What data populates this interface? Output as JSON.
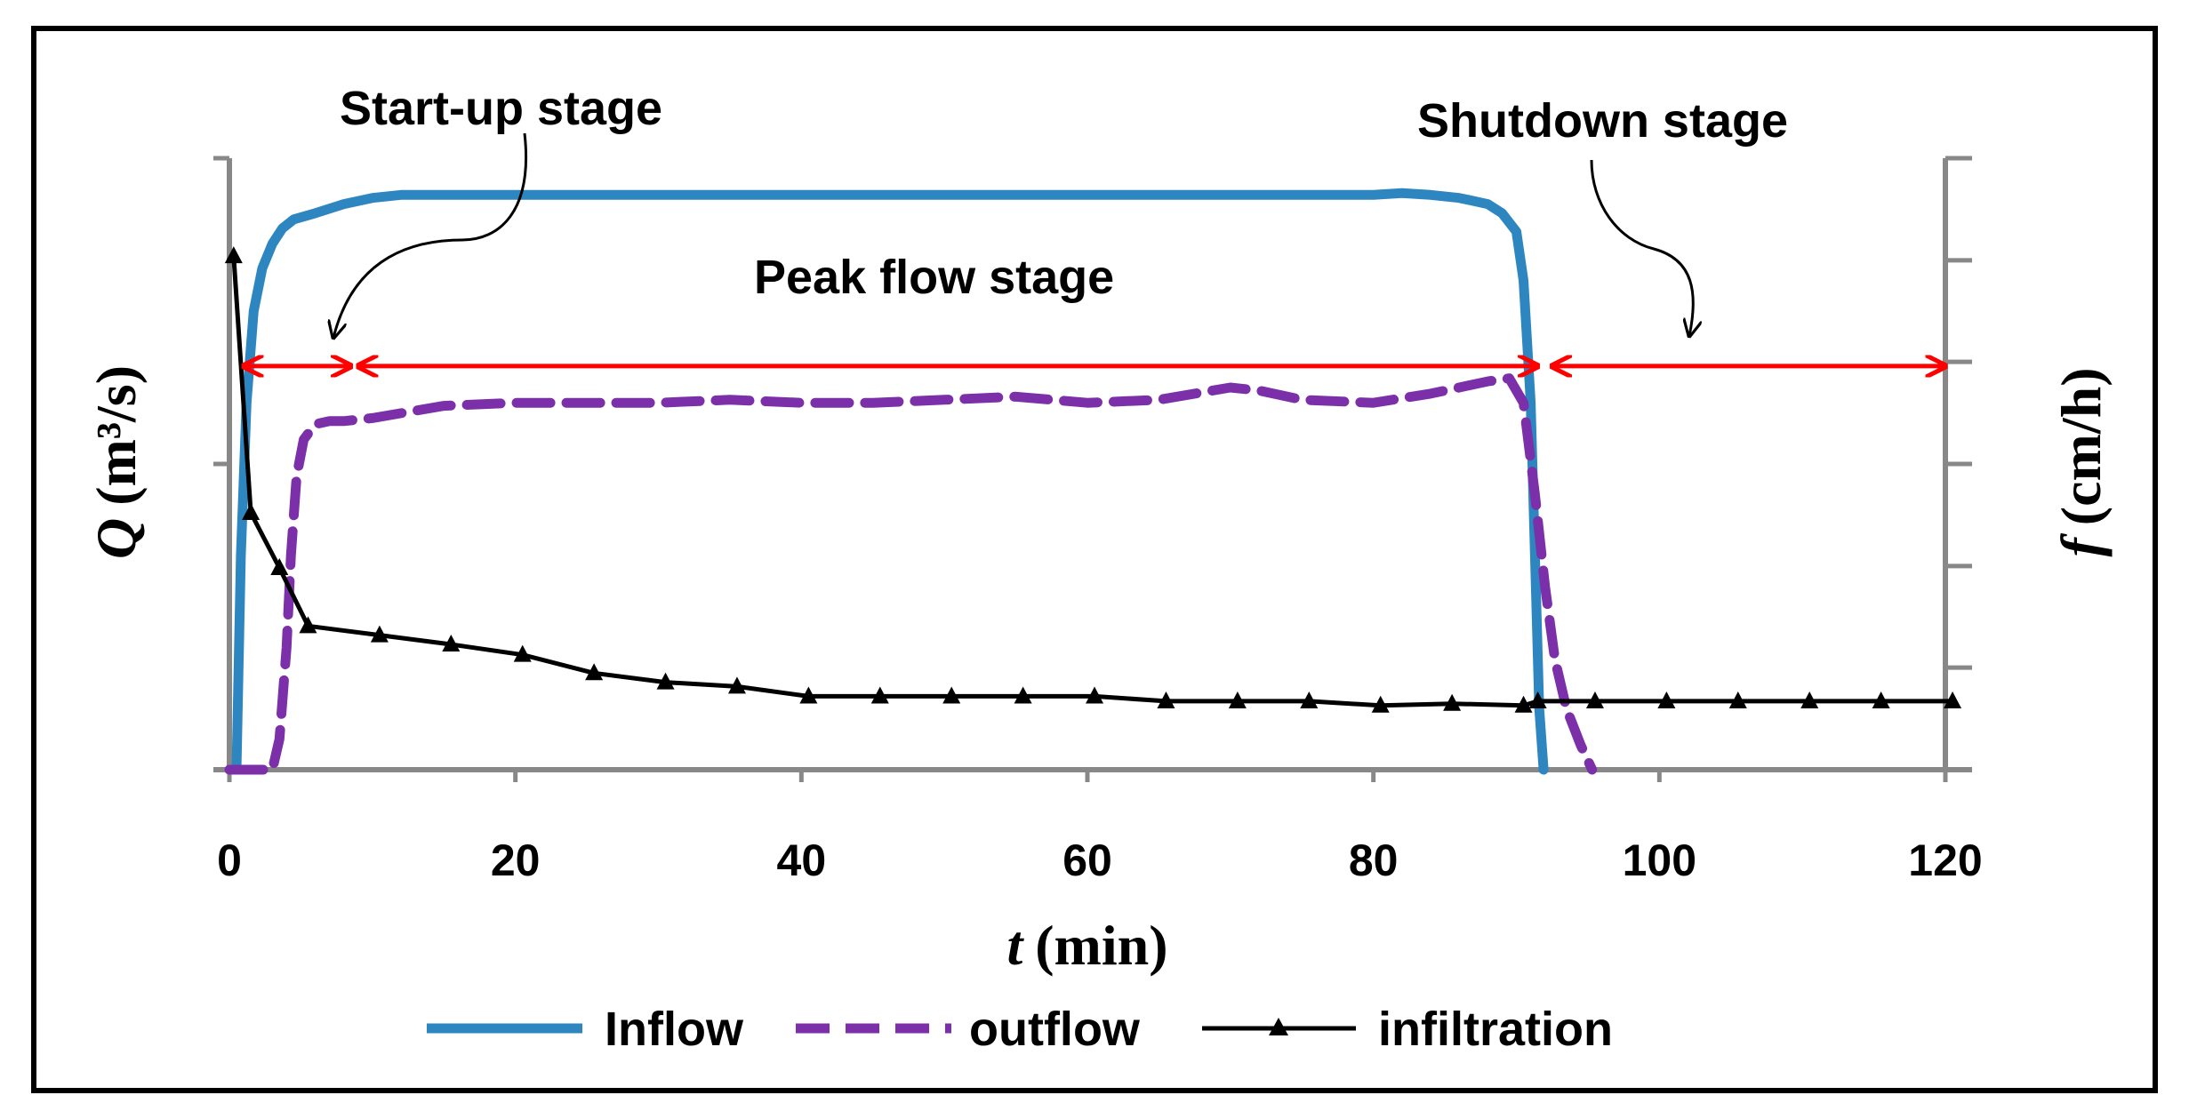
{
  "chart_data": {
    "type": "line",
    "title": "",
    "xlabel_var": "t",
    "xlabel_unit": "(min)",
    "ylabel_var": "Q",
    "ylabel_unit": "(m³/s)",
    "y2label_var": "f",
    "y2label_unit": "(cm/h)",
    "xlim": [
      0,
      120
    ],
    "ylim": [
      0,
      1
    ],
    "y2lim": [
      0,
      1
    ],
    "x_ticks": [
      0,
      20,
      40,
      60,
      80,
      100,
      120
    ],
    "x_tick_labels": [
      "0",
      "20",
      "40",
      "60",
      "80",
      "100",
      "120"
    ],
    "y_ticks": [
      0,
      0.5,
      1
    ],
    "y2_ticks": [
      0,
      0.167,
      0.333,
      0.5,
      0.667,
      0.833,
      1
    ],
    "grid": false,
    "legend_position": "bottom",
    "series": [
      {
        "name": "Inflow",
        "color": "#2E86C1",
        "style": "solid",
        "axis": "left",
        "x": [
          0.5,
          0.8,
          1.2,
          1.7,
          2.3,
          3,
          3.7,
          4.5,
          6,
          8,
          10,
          12,
          14,
          20,
          30,
          40,
          50,
          60,
          70,
          80,
          82,
          84,
          86,
          88,
          89,
          90,
          90.5,
          91,
          91.3,
          91.6,
          91.9
        ],
        "y": [
          0,
          0.35,
          0.6,
          0.75,
          0.82,
          0.86,
          0.885,
          0.9,
          0.91,
          0.925,
          0.935,
          0.94,
          0.94,
          0.94,
          0.94,
          0.94,
          0.94,
          0.94,
          0.94,
          0.94,
          0.943,
          0.94,
          0.935,
          0.925,
          0.91,
          0.88,
          0.8,
          0.6,
          0.35,
          0.1,
          0
        ]
      },
      {
        "name": "outflow",
        "color": "#7B2FA8",
        "style": "dashed",
        "axis": "left",
        "x": [
          0,
          3,
          3.5,
          4,
          4.3,
          4.7,
          5.2,
          6,
          7,
          8,
          10,
          15,
          20,
          30,
          35,
          40,
          45,
          50,
          55,
          60,
          65,
          70,
          72,
          75,
          80,
          84,
          86,
          88,
          89.5,
          90.5,
          91.3,
          92,
          92.7,
          93.5,
          94.5,
          95.3
        ],
        "y": [
          0,
          0,
          0.05,
          0.2,
          0.35,
          0.48,
          0.54,
          0.565,
          0.57,
          0.57,
          0.575,
          0.595,
          0.6,
          0.6,
          0.605,
          0.6,
          0.6,
          0.605,
          0.61,
          0.6,
          0.605,
          0.625,
          0.62,
          0.605,
          0.6,
          0.615,
          0.625,
          0.635,
          0.64,
          0.6,
          0.45,
          0.3,
          0.18,
          0.1,
          0.04,
          0
        ]
      },
      {
        "name": "infiltration",
        "color": "#000000",
        "style": "solid-triangle-markers",
        "axis": "right",
        "x": [
          0.3,
          1.5,
          3.5,
          5.5,
          10.5,
          15.5,
          20.5,
          25.5,
          30.5,
          35.5,
          40.5,
          45.5,
          50.5,
          55.5,
          60.5,
          65.5,
          70.5,
          75.5,
          80.5,
          85.5,
          90.5,
          91.5,
          95.5,
          100.5,
          105.5,
          110.5,
          115.5,
          120.5
        ],
        "y": [
          0.84,
          0.42,
          0.33,
          0.235,
          0.22,
          0.205,
          0.188,
          0.158,
          0.143,
          0.136,
          0.12,
          0.12,
          0.12,
          0.12,
          0.12,
          0.112,
          0.112,
          0.112,
          0.105,
          0.108,
          0.105,
          0.112,
          0.112,
          0.112,
          0.112,
          0.112,
          0.112,
          0.112
        ]
      }
    ],
    "annotations": [
      {
        "text": "Start-up stage"
      },
      {
        "text": "Peak flow stage"
      },
      {
        "text": "Shutdown stage"
      }
    ],
    "stage_arrows": [
      {
        "from": 1,
        "to": 8.5
      },
      {
        "from": 9,
        "to": 91.5
      },
      {
        "from": 92.5,
        "to": 120
      }
    ],
    "stage_arrow_y": 0.66,
    "stage_arrow_color": "#FF0000"
  }
}
